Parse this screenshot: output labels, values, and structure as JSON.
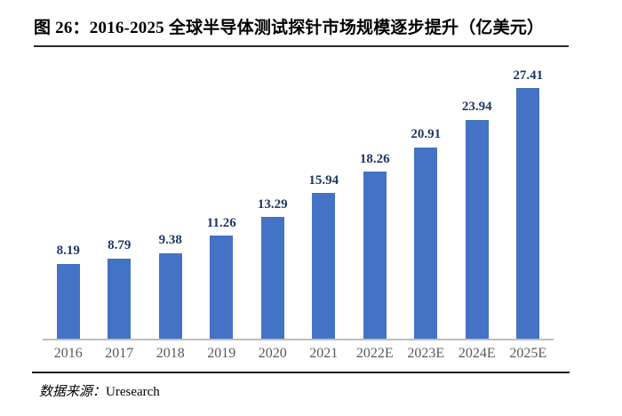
{
  "header": {
    "title": "图 26：2016-2025 全球半导体测试探针市场规模逐步提升（亿美元）"
  },
  "chart_data": {
    "type": "bar",
    "title": "2016-2025 全球半导体测试探针市场规模逐步提升",
    "unit": "亿美元",
    "categories": [
      "2016",
      "2017",
      "2018",
      "2019",
      "2020",
      "2021",
      "2022E",
      "2023E",
      "2024E",
      "2025E"
    ],
    "values": [
      8.19,
      8.79,
      9.38,
      11.26,
      13.29,
      15.94,
      18.26,
      20.91,
      23.94,
      27.41
    ],
    "xlabel": "",
    "ylabel": "",
    "ylim": [
      0,
      28
    ],
    "gridlines": false,
    "y_axis_visible": false,
    "data_labels": true,
    "legend": "none",
    "bar_color": "#4472c4",
    "value_label_color": "#1f3864",
    "axis_label_color": "#595959",
    "baseline_color": "#bdbdbd"
  },
  "footer": {
    "source_label": "数据来源：",
    "source_value": "Uresearch"
  }
}
